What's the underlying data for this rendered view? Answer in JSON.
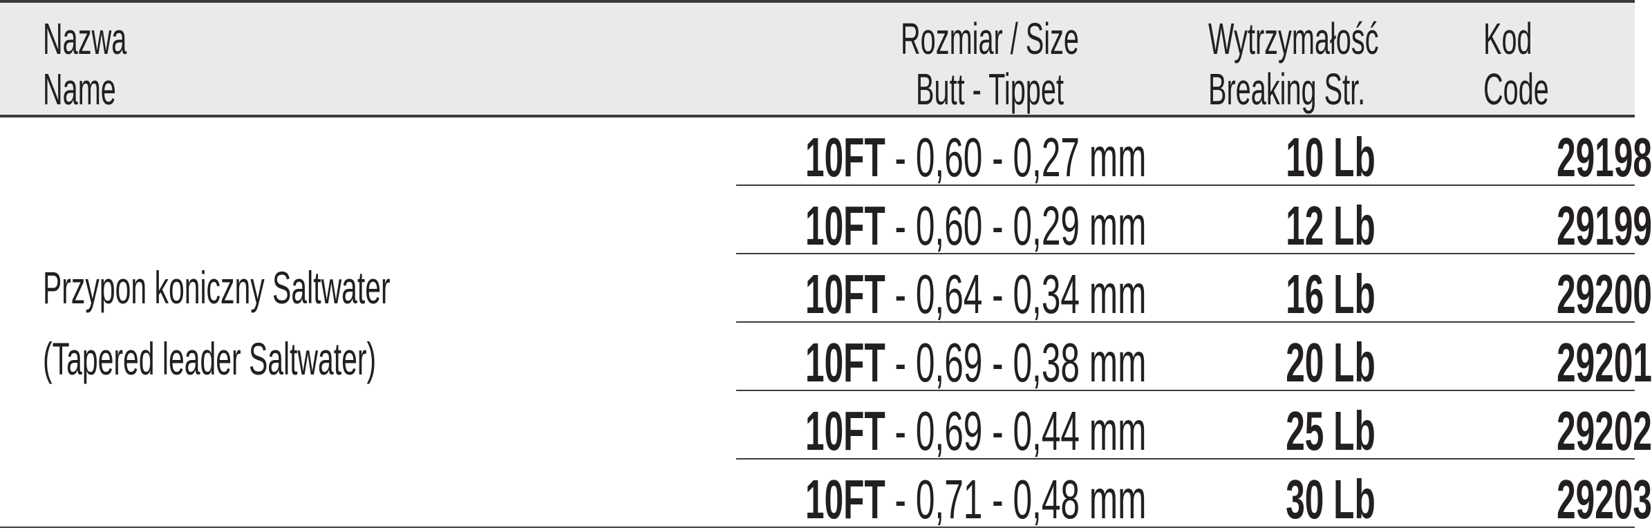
{
  "header": {
    "name": [
      "Nazwa",
      "Name"
    ],
    "size": [
      "Rozmiar / Size",
      "Butt - Tippet"
    ],
    "strength": [
      "Wytrzymałość",
      "Breaking Str."
    ],
    "code": [
      "Kod",
      "Code"
    ]
  },
  "product": {
    "name_pl": "Przypon koniczny Saltwater",
    "name_en": "(Tapered leader Saltwater)"
  },
  "rows": [
    {
      "length": "10FT",
      "size": " - 0,60 - 0,27 mm",
      "strength": "10 Lb",
      "code": "29198"
    },
    {
      "length": "10FT",
      "size": " - 0,60 - 0,29 mm",
      "strength": "12 Lb",
      "code": "29199"
    },
    {
      "length": "10FT",
      "size": " - 0,64 - 0,34 mm",
      "strength": "16 Lb",
      "code": "29200"
    },
    {
      "length": "10FT",
      "size": " - 0,69 - 0,38 mm",
      "strength": "20 Lb",
      "code": "29201"
    },
    {
      "length": "10FT",
      "size": " - 0,69 - 0,44 mm",
      "strength": "25 Lb",
      "code": "29202"
    },
    {
      "length": "10FT",
      "size": " - 0,71 - 0,48 mm",
      "strength": "30 Lb",
      "code": "29203"
    }
  ]
}
